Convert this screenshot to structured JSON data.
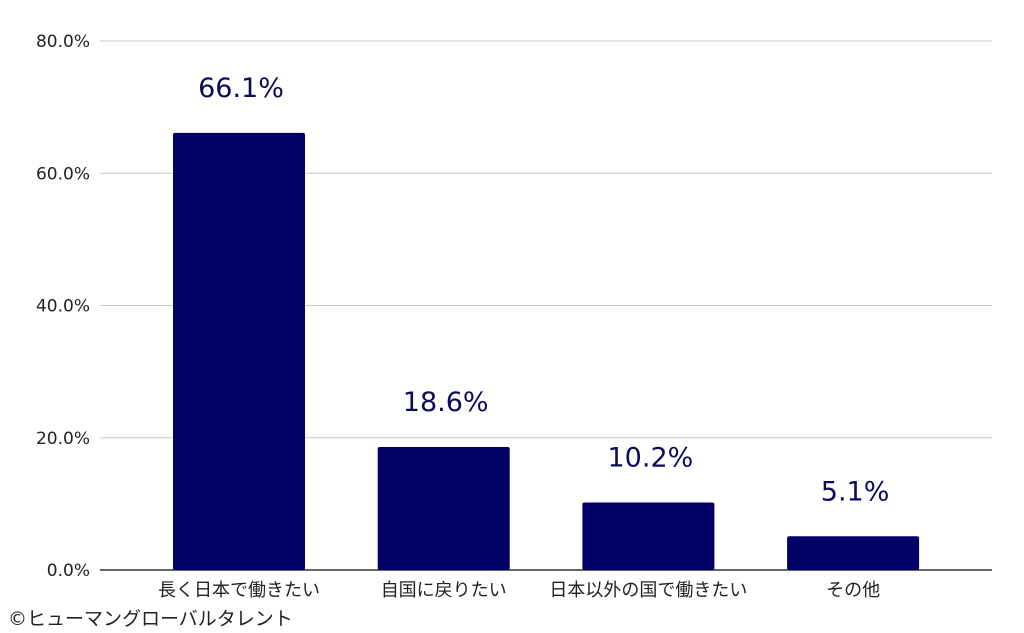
{
  "chart_data": {
    "type": "bar",
    "categories": [
      "長く日本で働きたい",
      "自国に戻りたい",
      "日本以外の国で働きたい",
      "その他"
    ],
    "values": [
      66.1,
      18.6,
      10.2,
      5.1
    ],
    "data_labels": [
      "66.1%",
      "18.6%",
      "10.2%",
      "5.1%"
    ],
    "title": "",
    "xlabel": "",
    "ylabel": "",
    "ylim": [
      0,
      80
    ],
    "yticks": [
      0,
      20,
      40,
      60,
      80
    ],
    "ytick_labels": [
      "0.0%",
      "20.0%",
      "40.0%",
      "60.0%",
      "80.0%"
    ],
    "grid": true,
    "legend": "none",
    "bar_color": "#000066"
  },
  "credit": "©ヒューマングローバルタレント"
}
